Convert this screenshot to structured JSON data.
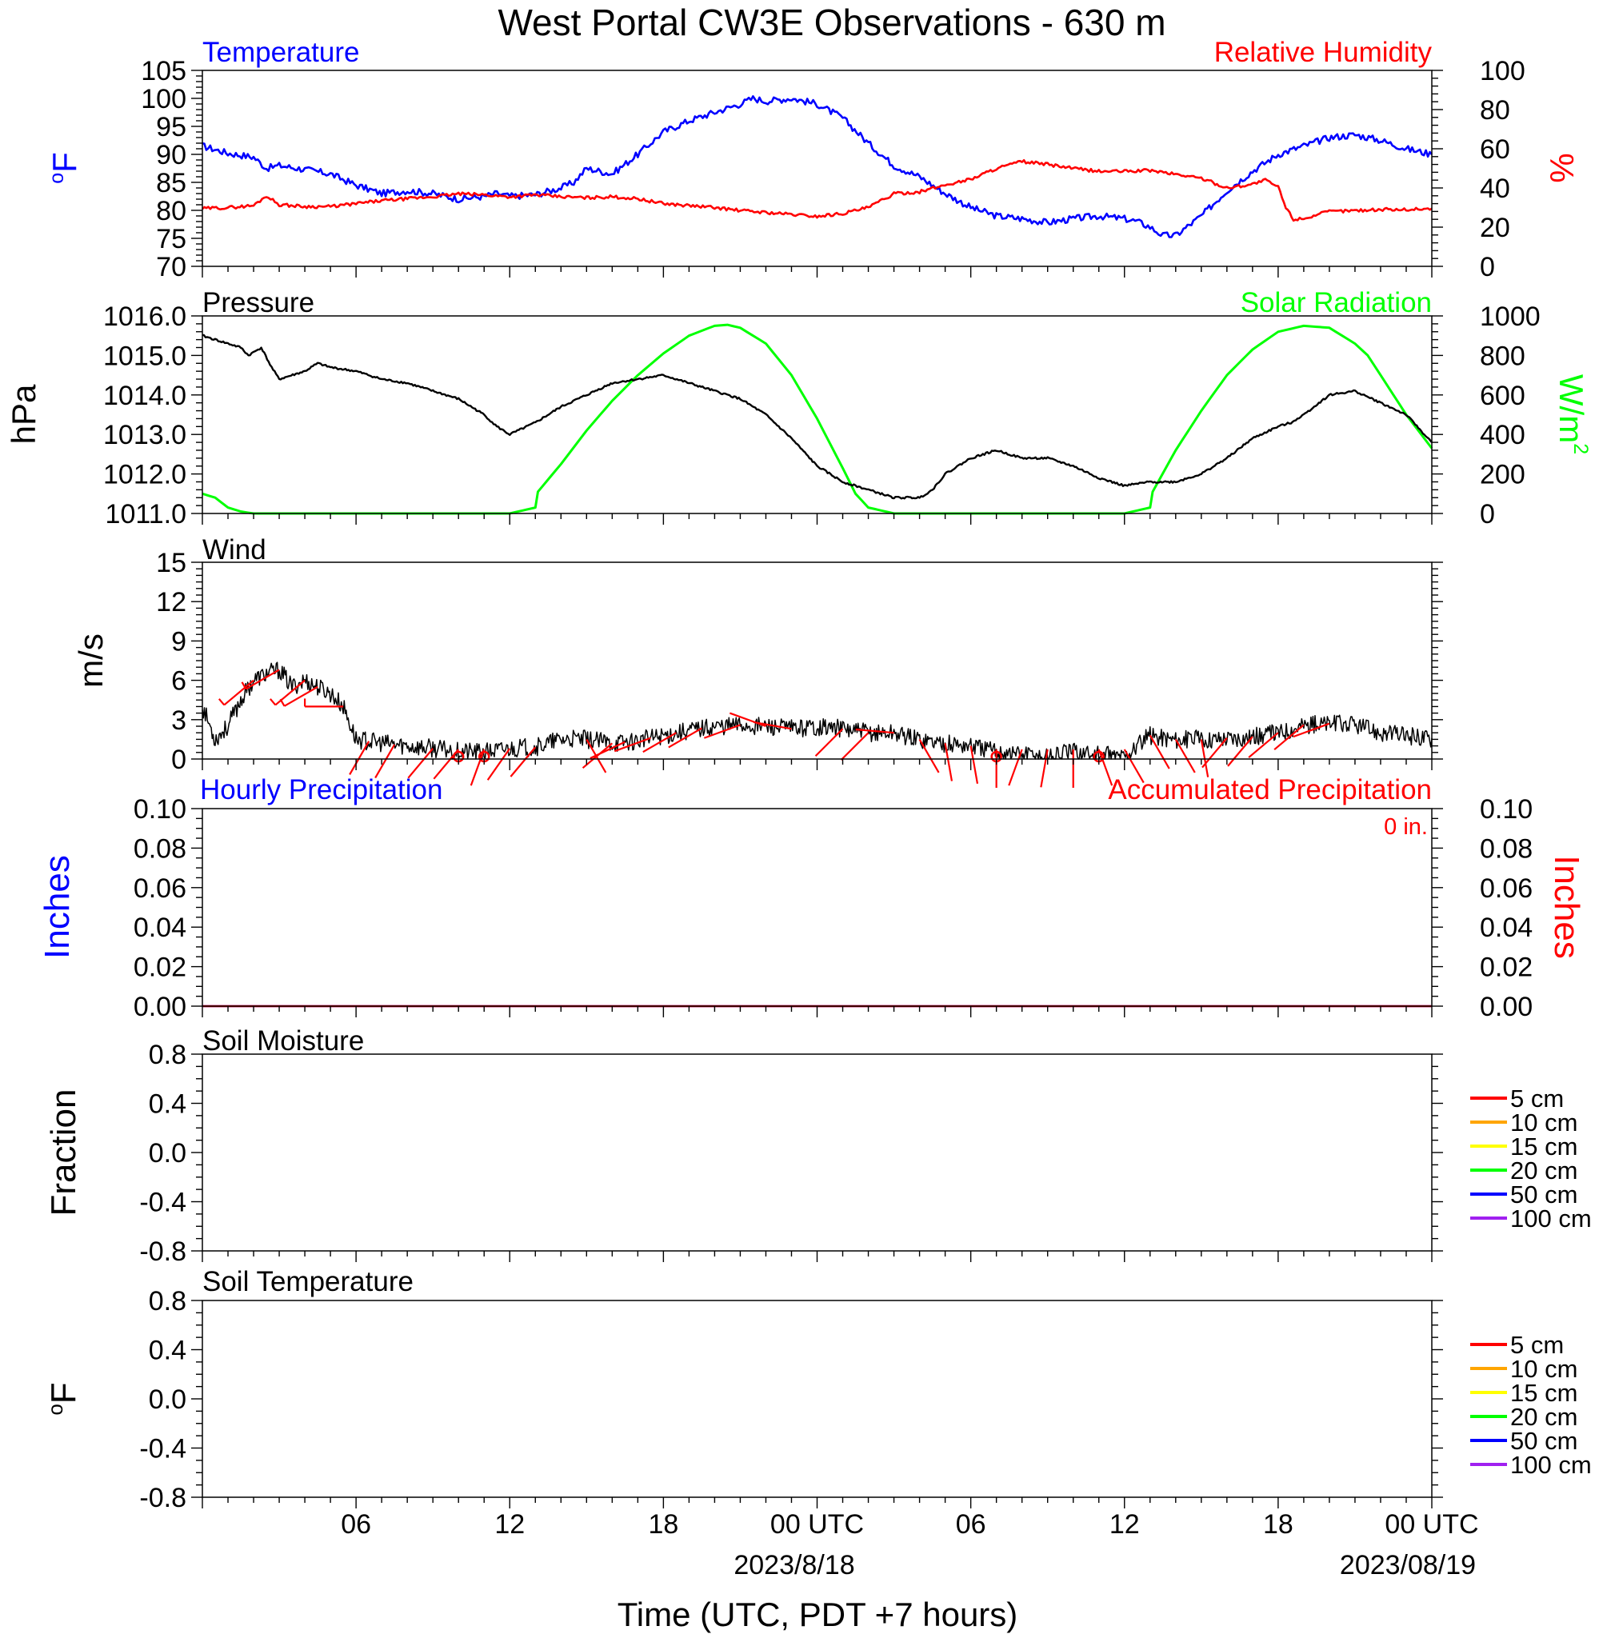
{
  "title": "West Portal CW3E Observations - 630 m",
  "xlabel": "Time (UTC, PDT +7 hours)",
  "x_ticks": [
    "06",
    "12",
    "18",
    "00 UTC",
    "06",
    "12",
    "18",
    "00 UTC"
  ],
  "x_dates": [
    "2023/8/18",
    "2023/08/19"
  ],
  "colors": {
    "temperature": "#0000ff",
    "humidity": "#ff0000",
    "pressure": "#000000",
    "solar": "#00ff00",
    "wind": "#000000",
    "barbs": "#ff0000",
    "hourly_precip": "#0000ff",
    "accum_precip": "#ff0000"
  },
  "panels": {
    "temp_rh": {
      "left_title": "Temperature",
      "right_title": "Relative Humidity",
      "ylabel_left": "oF",
      "ylabel_right": "%",
      "left_ticks": [
        "105",
        "100",
        "95",
        "90",
        "85",
        "80",
        "75",
        "70"
      ],
      "right_ticks": [
        "100",
        "80",
        "60",
        "40",
        "20",
        "0"
      ]
    },
    "pressure": {
      "left_title": "Pressure",
      "right_title": "Solar Radiation",
      "ylabel_left": "hPa",
      "ylabel_right": "W/m2",
      "left_ticks": [
        "1016.0",
        "1015.0",
        "1014.0",
        "1013.0",
        "1012.0",
        "1011.0"
      ],
      "right_ticks": [
        "1000",
        "800",
        "600",
        "400",
        "200",
        "0"
      ]
    },
    "wind": {
      "title": "Wind",
      "ylabel": "m/s",
      "ticks": [
        "15",
        "12",
        "9",
        "6",
        "3",
        "0"
      ]
    },
    "precip": {
      "left_title": "Hourly Precipitation",
      "right_title": "Accumulated Precipitation",
      "total": "0 in.",
      "ylabel_left": "Inches",
      "ylabel_right": "Inches",
      "left_ticks": [
        "0.10",
        "0.08",
        "0.06",
        "0.04",
        "0.02",
        "0.00"
      ],
      "right_ticks": [
        "0.10",
        "0.08",
        "0.06",
        "0.04",
        "0.02",
        "0.00"
      ]
    },
    "soil_moisture": {
      "title": "Soil Moisture",
      "ylabel": "Fraction",
      "ticks": [
        "0.8",
        "0.4",
        "0.0",
        "-0.4",
        "-0.8"
      ],
      "legend": [
        "5 cm",
        "10 cm",
        "15 cm",
        "20 cm",
        "50 cm",
        "100 cm"
      ]
    },
    "soil_temp": {
      "title": "Soil Temperature",
      "ylabel": "oF",
      "ticks": [
        "0.8",
        "0.4",
        "0.0",
        "-0.4",
        "-0.8"
      ],
      "legend": [
        "5 cm",
        "10 cm",
        "15 cm",
        "20 cm",
        "50 cm",
        "100 cm"
      ]
    }
  },
  "legend_colors": [
    "#ff0000",
    "#ffa500",
    "#ffff00",
    "#00ff00",
    "#0000ff",
    "#a020f0"
  ],
  "chart_data": {
    "type": "line",
    "x_unit": "hours since 2023-08-17 00 UTC",
    "xlim": [
      0,
      48
    ],
    "series": [
      {
        "name": "Temperature",
        "axis": "left",
        "unit": "°F",
        "ylim": [
          70,
          105
        ],
        "x": [
          0,
          1,
          2,
          2.5,
          3,
          4,
          5,
          6,
          7,
          8,
          9,
          10,
          11,
          11.5,
          12,
          13,
          14,
          14.5,
          15,
          16,
          17,
          17.5,
          18,
          19,
          20,
          21,
          21.5,
          22,
          23,
          24,
          25,
          26,
          27,
          28,
          29,
          30,
          31,
          32,
          33,
          34,
          35,
          36,
          36.5,
          37,
          37.5,
          38,
          39,
          40,
          41,
          42,
          43,
          44,
          45,
          46,
          47,
          48
        ],
        "values": [
          91.5,
          90.2,
          89.5,
          87.5,
          88.0,
          87.3,
          86.5,
          84.5,
          83.0,
          83.5,
          83.0,
          82.0,
          82.5,
          83.0,
          82.5,
          82.8,
          84.0,
          85.0,
          87.5,
          86.5,
          90.0,
          92.0,
          94.0,
          96.0,
          97.5,
          99.0,
          100.0,
          99.5,
          100.0,
          99.0,
          96.5,
          92.0,
          88.0,
          86.0,
          83.0,
          80.5,
          79.0,
          78.5,
          77.8,
          78.5,
          79.0,
          78.5,
          78.0,
          77.0,
          75.5,
          75.5,
          79.0,
          83.5,
          87.0,
          90.0,
          91.5,
          93.0,
          93.5,
          92.5,
          91.0,
          90.0
        ]
      },
      {
        "name": "Relative Humidity",
        "axis": "right",
        "unit": "%",
        "ylim": [
          0,
          100
        ],
        "x": [
          0,
          1,
          2,
          2.5,
          3,
          4,
          5,
          6,
          7,
          8,
          9,
          10,
          11,
          12,
          13,
          14,
          15,
          16,
          17,
          18,
          19,
          20,
          21,
          22,
          23,
          24,
          25,
          26,
          27,
          28,
          29,
          30,
          31,
          32,
          33,
          34,
          35,
          36,
          37,
          38,
          39,
          40,
          41,
          41.5,
          42,
          42.3,
          42.6,
          43,
          44,
          45,
          46,
          47,
          48
        ],
        "values": [
          29.5,
          30.0,
          31.0,
          36.0,
          31.5,
          30.5,
          30.5,
          32.0,
          33.5,
          34.5,
          35.5,
          37.0,
          36.5,
          35.5,
          36.5,
          35.5,
          35.0,
          35.5,
          34.5,
          32.0,
          31.0,
          30.0,
          28.5,
          27.5,
          26.5,
          25.5,
          27.0,
          30.0,
          37.0,
          38.0,
          41.5,
          44.5,
          50.0,
          53.5,
          52.0,
          50.0,
          48.5,
          48.5,
          49.0,
          47.0,
          45.0,
          40.0,
          42.0,
          44.0,
          40.5,
          30.0,
          24.0,
          24.5,
          28.0,
          28.5,
          29.0,
          29.0,
          29.5
        ]
      },
      {
        "name": "Pressure",
        "axis": "left",
        "unit": "hPa",
        "ylim": [
          1011.0,
          1016.0
        ],
        "x": [
          0,
          0.5,
          1,
          1.5,
          1.8,
          2.3,
          2.7,
          3,
          4,
          4.5,
          5,
          6,
          7,
          8,
          9,
          10,
          11,
          11.5,
          12,
          13,
          14,
          15,
          16,
          17,
          18,
          19,
          20,
          21,
          22,
          22.5,
          23,
          24,
          25,
          25.5,
          26,
          27,
          28,
          28.5,
          29,
          30,
          31,
          31.5,
          32,
          33,
          34,
          35,
          36,
          37,
          38,
          39,
          40,
          41,
          42,
          42.5,
          43,
          44,
          45,
          46,
          47,
          48
        ],
        "values": [
          1015.5,
          1015.4,
          1015.3,
          1015.2,
          1015.0,
          1015.2,
          1014.7,
          1014.4,
          1014.6,
          1014.8,
          1014.7,
          1014.6,
          1014.4,
          1014.3,
          1014.1,
          1013.9,
          1013.5,
          1013.2,
          1013.0,
          1013.3,
          1013.7,
          1014.0,
          1014.3,
          1014.4,
          1014.5,
          1014.3,
          1014.1,
          1013.9,
          1013.5,
          1013.2,
          1012.9,
          1012.2,
          1011.8,
          1011.7,
          1011.6,
          1011.4,
          1011.4,
          1011.6,
          1012.0,
          1012.4,
          1012.6,
          1012.5,
          1012.4,
          1012.4,
          1012.2,
          1011.9,
          1011.7,
          1011.8,
          1011.8,
          1012.0,
          1012.4,
          1012.9,
          1013.2,
          1013.3,
          1013.5,
          1014.0,
          1014.1,
          1013.8,
          1013.5,
          1012.8
        ]
      },
      {
        "name": "Solar Radiation",
        "axis": "right",
        "unit": "W/m2",
        "ylim": [
          0,
          1000
        ],
        "x": [
          0,
          0.5,
          1,
          1.5,
          2,
          12,
          13,
          13.1,
          14,
          15,
          16,
          17,
          18,
          19,
          20,
          20.5,
          21,
          22,
          23,
          24,
          25,
          25.5,
          26,
          27,
          36,
          37,
          37.1,
          38,
          39,
          40,
          41,
          42,
          43,
          44,
          45,
          45.5,
          46,
          47,
          48
        ],
        "values": [
          100,
          80,
          30,
          10,
          0,
          0,
          30,
          110,
          250,
          420,
          570,
          700,
          810,
          900,
          950,
          955,
          940,
          860,
          700,
          480,
          230,
          100,
          30,
          0,
          0,
          30,
          110,
          320,
          520,
          700,
          830,
          920,
          950,
          940,
          860,
          800,
          700,
          500,
          330
        ]
      },
      {
        "name": "Wind",
        "axis": "left",
        "unit": "m/s",
        "ylim": [
          0,
          15
        ],
        "x": [
          0,
          0.5,
          1,
          1.5,
          2,
          2.5,
          3,
          3.5,
          4,
          4.5,
          5,
          5.5,
          6,
          7,
          8,
          9,
          10,
          11,
          12,
          13,
          14,
          15,
          16,
          17,
          18,
          19,
          20,
          21,
          22,
          23,
          24,
          25,
          26,
          27,
          28,
          29,
          30,
          31,
          32,
          33,
          34,
          35,
          36,
          37,
          38,
          39,
          40,
          41,
          42,
          43,
          44,
          45,
          46,
          47,
          48
        ],
        "values": [
          4.0,
          1.5,
          2.5,
          4.5,
          6.0,
          6.5,
          6.8,
          5.5,
          6.0,
          5.5,
          5.0,
          4.0,
          1.5,
          1.2,
          1.0,
          0.8,
          0.6,
          0.5,
          0.8,
          0.9,
          1.5,
          1.5,
          1.2,
          1.4,
          1.8,
          2.2,
          2.5,
          2.6,
          2.5,
          2.3,
          2.5,
          2.3,
          2.0,
          2.0,
          1.5,
          1.2,
          1.0,
          0.6,
          0.4,
          0.2,
          0.6,
          0.3,
          0.2,
          1.8,
          1.5,
          1.5,
          1.6,
          1.7,
          2.0,
          2.6,
          2.7,
          2.6,
          2.0,
          1.8,
          1.6
        ]
      },
      {
        "name": "Hourly Precipitation",
        "axis": "left",
        "unit": "in",
        "ylim": [
          0,
          0.1
        ],
        "x": [
          0,
          48
        ],
        "values": [
          0,
          0
        ]
      },
      {
        "name": "Accumulated Precipitation",
        "axis": "right",
        "unit": "in",
        "ylim": [
          0,
          0.1
        ],
        "x": [
          0,
          48
        ],
        "values": [
          0,
          0
        ]
      }
    ],
    "wind_barbs": {
      "unit": "direction (deg, from)",
      "x": [
        2,
        3,
        4,
        4.5,
        5.5,
        6.5,
        7.5,
        9,
        10,
        11,
        12,
        13,
        15,
        16,
        16.5,
        17.5,
        18.5,
        19.5,
        21,
        22,
        23,
        25,
        26,
        27,
        28,
        29,
        30,
        31,
        32,
        33,
        34,
        35,
        36,
        37,
        38,
        39,
        40,
        41,
        42,
        43,
        44
      ],
      "direction": [
        230,
        240,
        230,
        240,
        270,
        210,
        210,
        220,
        220,
        200,
        215,
        220,
        150,
        230,
        245,
        250,
        240,
        240,
        250,
        290,
        280,
        225,
        225,
        275,
        150,
        170,
        170,
        180,
        200,
        190,
        180,
        160,
        150,
        150,
        150,
        170,
        220,
        220,
        230,
        230,
        250
      ]
    },
    "calm_markers_x": [
      10,
      11,
      31,
      35
    ]
  }
}
